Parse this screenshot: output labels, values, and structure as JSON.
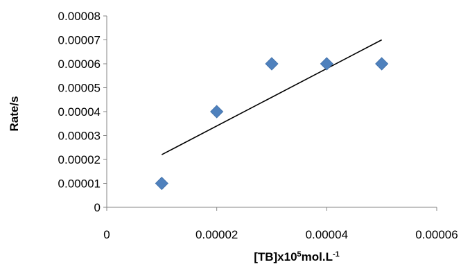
{
  "chart_data": {
    "type": "scatter",
    "title": "",
    "xlabel": "[TB]x10",
    "xlabel_sup1": "5",
    "xlabel_mid": "mol.L",
    "xlabel_sup2": "-1",
    "ylabel": "Rate/s",
    "xlim": [
      0,
      6e-05
    ],
    "ylim": [
      0,
      8e-05
    ],
    "x_ticks": [
      "0",
      "0.00002",
      "0.00004",
      "0.00006"
    ],
    "y_ticks": [
      "0",
      "0.00001",
      "0.00002",
      "0.00003",
      "0.00004",
      "0.00005",
      "0.00006",
      "0.00007",
      "0.00008"
    ],
    "grid": false,
    "legend": "none",
    "series": [
      {
        "marker": "diamond",
        "color": "#4f81bd",
        "points": [
          {
            "x": 1e-05,
            "y": 1e-05
          },
          {
            "x": 2e-05,
            "y": 4e-05
          },
          {
            "x": 3e-05,
            "y": 6e-05
          },
          {
            "x": 4e-05,
            "y": 6e-05
          },
          {
            "x": 5e-05,
            "y": 6e-05
          }
        ]
      }
    ],
    "trendline": {
      "type": "linear",
      "color": "#000000",
      "x_start": 1e-05,
      "y_start": 2.2e-05,
      "x_end": 5e-05,
      "y_end": 7e-05
    }
  }
}
